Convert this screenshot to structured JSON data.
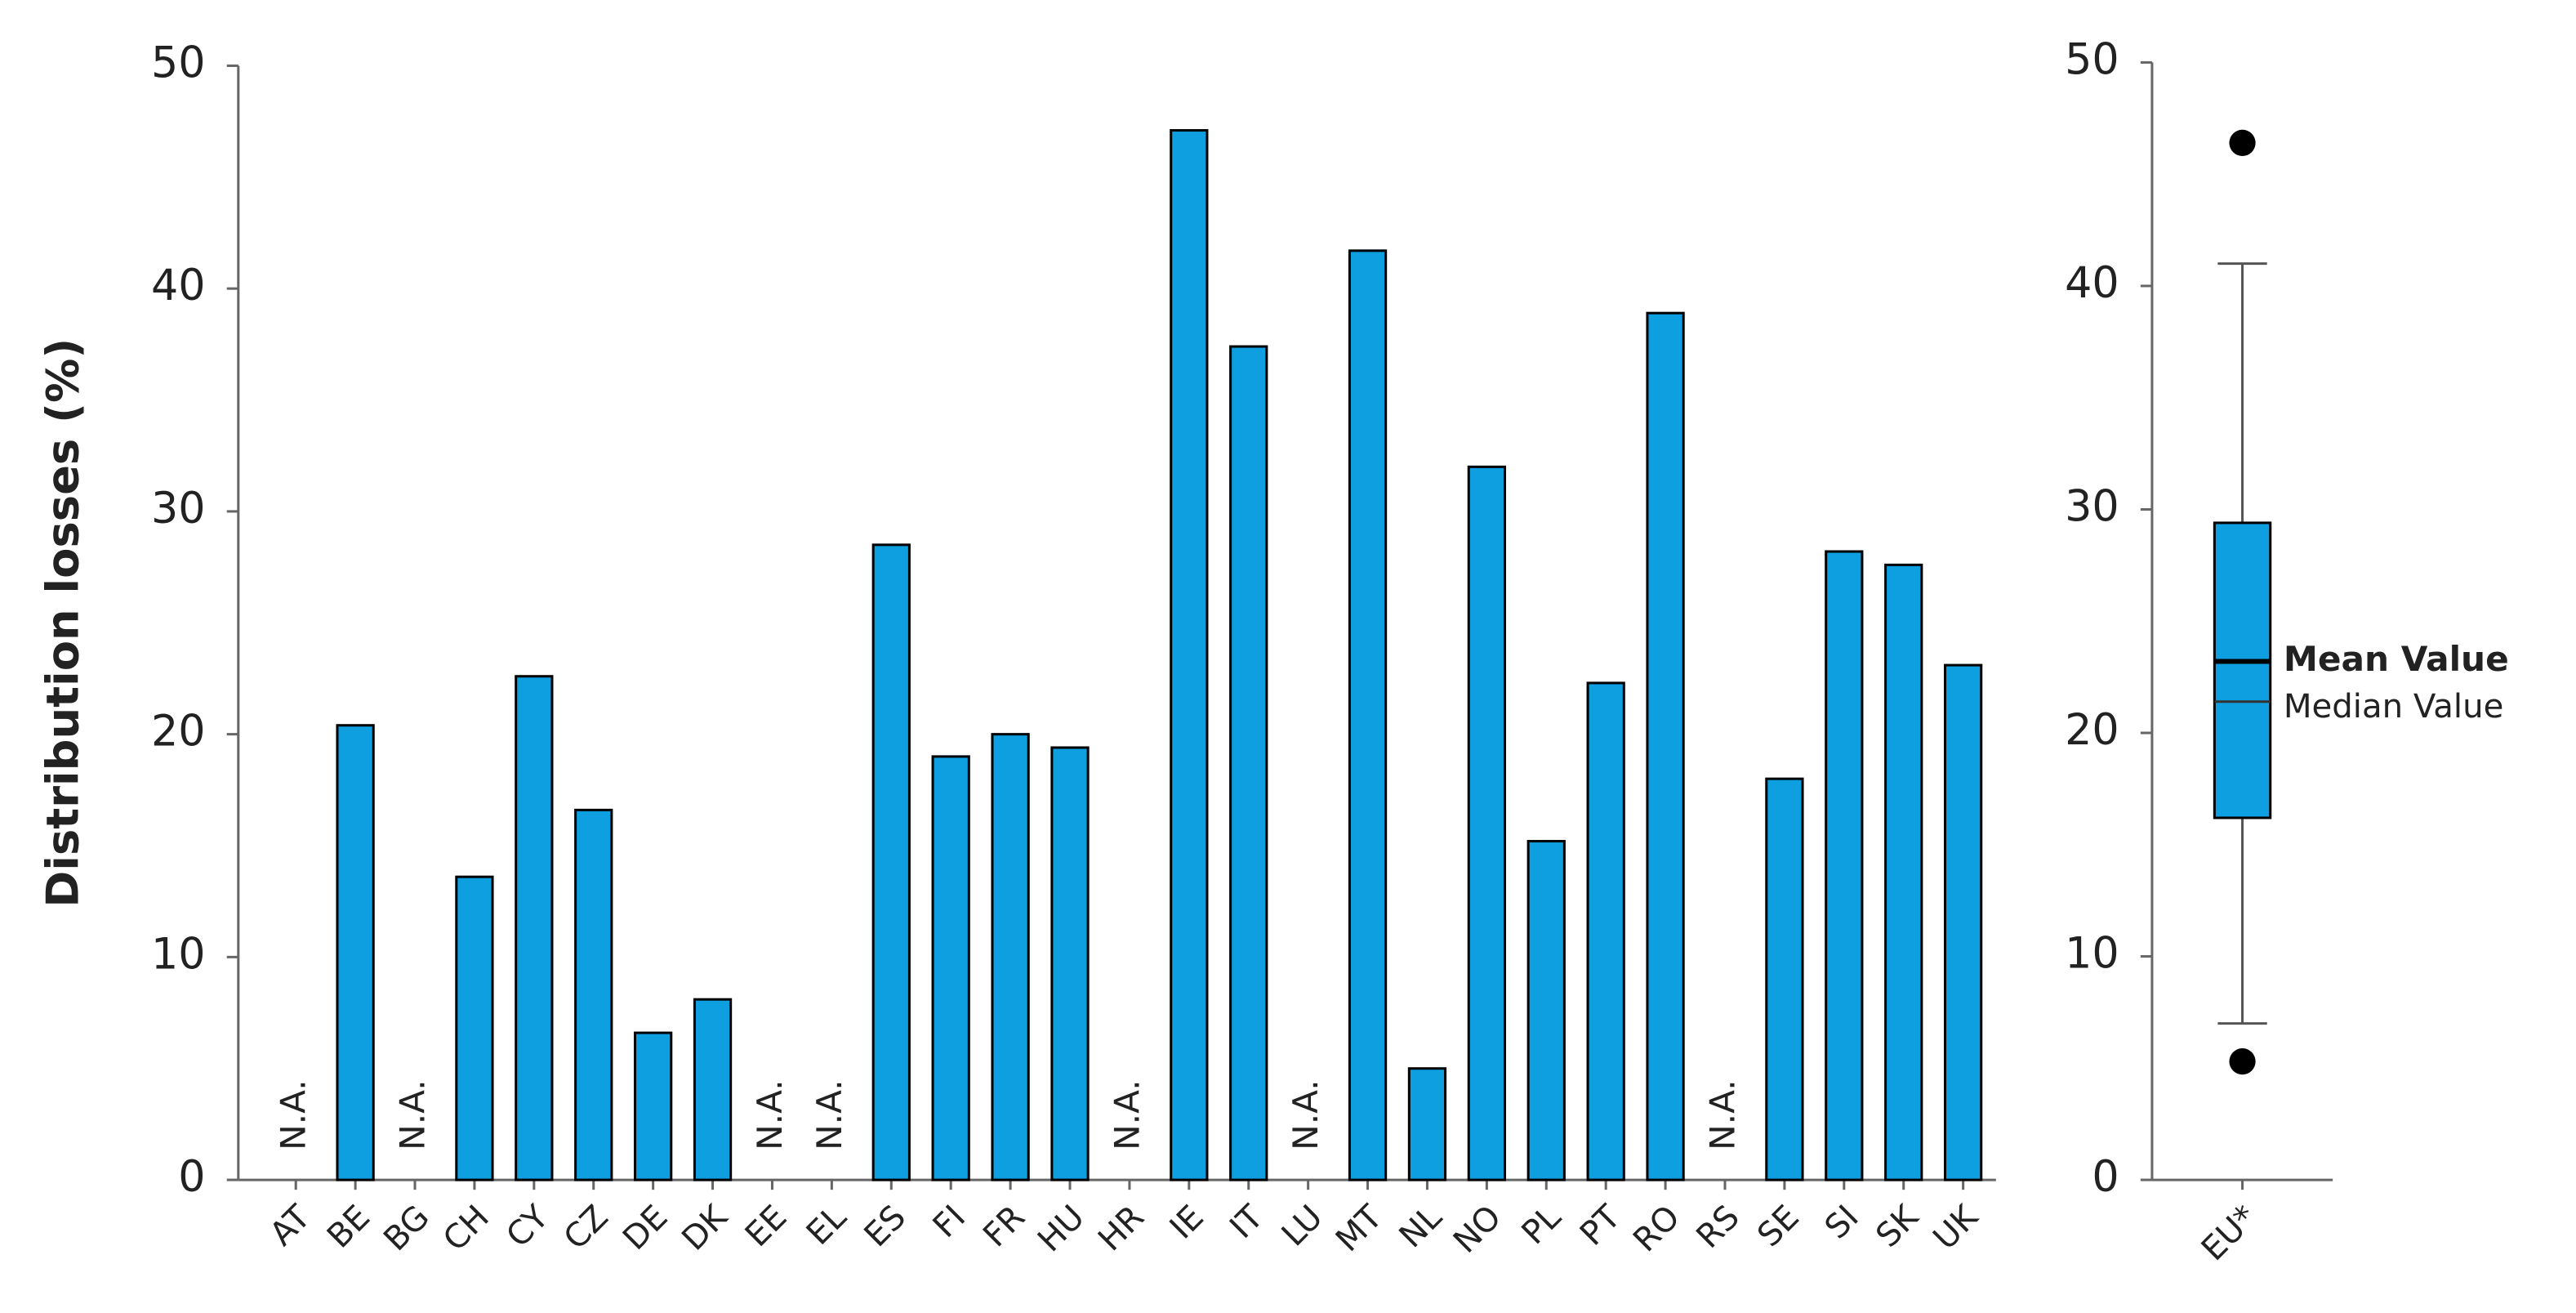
{
  "chart_data": [
    {
      "type": "bar",
      "y_label": "Distribution losses (%)",
      "categories": [
        "AT",
        "BE",
        "BG",
        "CH",
        "CY",
        "CZ",
        "DE",
        "DK",
        "EE",
        "EL",
        "ES",
        "FI",
        "FR",
        "HU",
        "HR",
        "IE",
        "IT",
        "LU",
        "MT",
        "NL",
        "NO",
        "PL",
        "PT",
        "RO",
        "RS",
        "SE",
        "SI",
        "SK",
        "UK"
      ],
      "values": [
        null,
        20.4,
        null,
        13.6,
        22.6,
        16.6,
        6.6,
        8.1,
        null,
        null,
        28.5,
        19,
        20,
        19.4,
        null,
        47.1,
        37.4,
        null,
        41.7,
        5,
        32,
        15.2,
        22.3,
        38.9,
        null,
        18,
        28.2,
        27.6,
        23.1
      ],
      "value_labels": [
        "N.A.",
        null,
        "N.A.",
        null,
        null,
        null,
        null,
        null,
        "N.A.",
        "N.A.",
        null,
        null,
        null,
        null,
        "N.A.",
        null,
        null,
        "N.A.",
        null,
        null,
        null,
        null,
        null,
        null,
        "N.A.",
        null,
        null,
        null,
        null
      ],
      "color": "#0e9fe0",
      "ylim": [
        0,
        50
      ],
      "yticks": [
        0,
        10,
        20,
        30,
        40,
        50
      ]
    },
    {
      "type": "box",
      "categories": [
        "EU*"
      ],
      "whisker_low": 7,
      "q1": 16.2,
      "median": 21.4,
      "mean": 23.2,
      "q3": 29.4,
      "whisker_high": 41,
      "outliers": [
        46.4,
        5.3
      ],
      "mean_label": "Mean Value",
      "median_label": "Median Value",
      "color": "#0e9fe0",
      "ylim": [
        0,
        50
      ],
      "yticks": [
        0,
        10,
        20,
        30,
        40,
        50
      ]
    }
  ]
}
